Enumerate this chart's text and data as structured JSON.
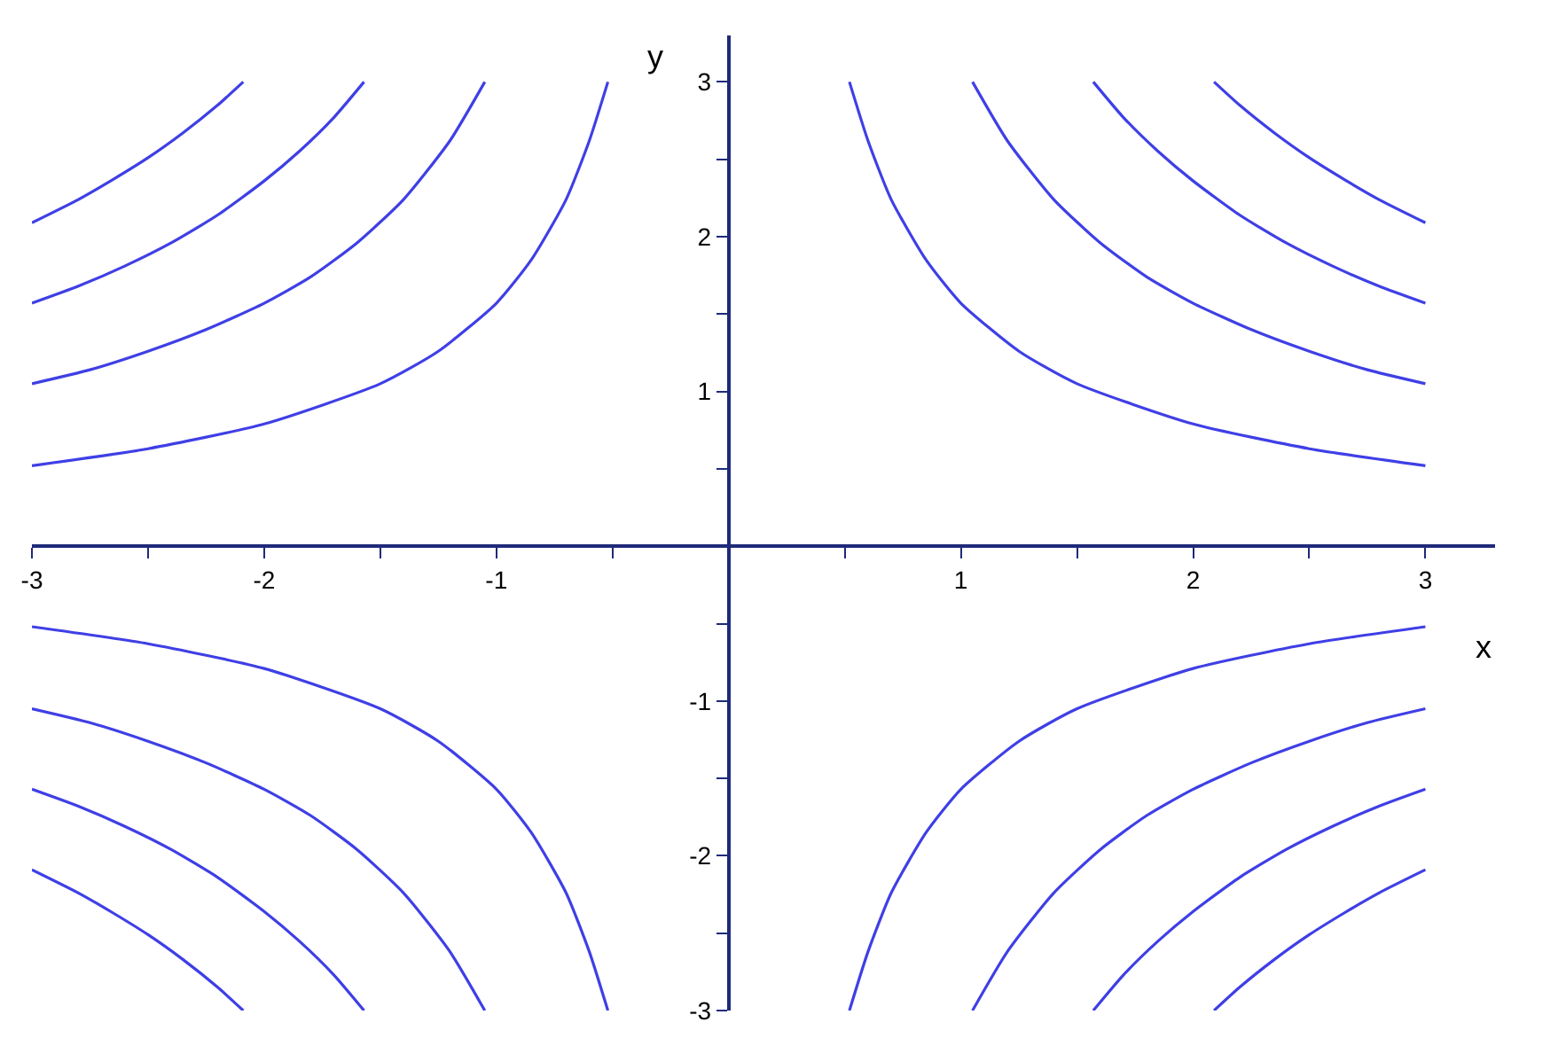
{
  "chart_data": {
    "type": "line",
    "xlabel": "x",
    "ylabel": "y",
    "xlim": [
      -3,
      3.3
    ],
    "ylim": [
      -3,
      3.3
    ],
    "xticks": [
      -3,
      {
        "value": -2.5,
        "label": null
      },
      -2,
      {
        "value": -1.5,
        "label": null
      },
      -1,
      {
        "value": -0.5,
        "label": null
      },
      {
        "value": 0,
        "label": null
      },
      {
        "value": 0.5,
        "label": null
      },
      1,
      {
        "value": 1.5,
        "label": null
      },
      2,
      {
        "value": 2.5,
        "label": null
      },
      3
    ],
    "yticks": [
      -3,
      {
        "value": -2.5,
        "label": null
      },
      -2,
      {
        "value": -1.5,
        "label": null
      },
      -1,
      {
        "value": -0.5,
        "label": null
      },
      {
        "value": 0,
        "label": null
      },
      {
        "value": 0.5,
        "label": null
      },
      1,
      {
        "value": 1.5,
        "label": null
      },
      2,
      {
        "value": 2.5,
        "label": null
      },
      3
    ],
    "marker": "none",
    "line_style": "solid",
    "series": [
      {
        "color": "#3f3fe6",
        "x": [
          0.52,
          0.6,
          0.7,
          0.85,
          1,
          1.25,
          1.5,
          2,
          2.5,
          3
        ],
        "values": [
          3.0,
          2.62,
          2.24,
          1.85,
          1.57,
          1.26,
          1.05,
          0.79,
          0.63,
          0.52
        ]
      },
      {
        "color": "#3f3fe6",
        "x": [
          1.05,
          1.2,
          1.4,
          1.6,
          1.8,
          2,
          2.25,
          2.5,
          2.75,
          3
        ],
        "values": [
          3.0,
          2.62,
          2.24,
          1.96,
          1.74,
          1.57,
          1.4,
          1.26,
          1.14,
          1.05
        ]
      },
      {
        "color": "#3f3fe6",
        "x": [
          1.57,
          1.7,
          1.85,
          2,
          2.2,
          2.4,
          2.6,
          2.8,
          3
        ],
        "values": [
          3.0,
          2.77,
          2.55,
          2.36,
          2.14,
          1.96,
          1.81,
          1.68,
          1.57
        ]
      },
      {
        "color": "#3f3fe6",
        "x": [
          2.09,
          2.2,
          2.35,
          2.5,
          2.65,
          2.8,
          3
        ],
        "values": [
          3.0,
          2.85,
          2.67,
          2.51,
          2.37,
          2.24,
          2.09
        ]
      },
      {
        "color": "#3f3fe6",
        "x": [
          -0.52,
          -0.6,
          -0.7,
          -0.85,
          -1,
          -1.25,
          -1.5,
          -2,
          -2.5,
          -3
        ],
        "values": [
          3.0,
          2.62,
          2.24,
          1.85,
          1.57,
          1.26,
          1.05,
          0.79,
          0.63,
          0.52
        ]
      },
      {
        "color": "#3f3fe6",
        "x": [
          -1.05,
          -1.2,
          -1.4,
          -1.6,
          -1.8,
          -2,
          -2.25,
          -2.5,
          -2.75,
          -3
        ],
        "values": [
          3.0,
          2.62,
          2.24,
          1.96,
          1.74,
          1.57,
          1.4,
          1.26,
          1.14,
          1.05
        ]
      },
      {
        "color": "#3f3fe6",
        "x": [
          -1.57,
          -1.7,
          -1.85,
          -2,
          -2.2,
          -2.4,
          -2.6,
          -2.8,
          -3
        ],
        "values": [
          3.0,
          2.77,
          2.55,
          2.36,
          2.14,
          1.96,
          1.81,
          1.68,
          1.57
        ]
      },
      {
        "color": "#3f3fe6",
        "x": [
          -2.09,
          -2.2,
          -2.35,
          -2.5,
          -2.65,
          -2.8,
          -3
        ],
        "values": [
          3.0,
          2.85,
          2.67,
          2.51,
          2.37,
          2.24,
          2.09
        ]
      },
      {
        "color": "#3f3fe6",
        "x": [
          -0.52,
          -0.6,
          -0.7,
          -0.85,
          -1,
          -1.25,
          -1.5,
          -2,
          -2.5,
          -3
        ],
        "values": [
          -3.0,
          -2.62,
          -2.24,
          -1.85,
          -1.57,
          -1.26,
          -1.05,
          -0.79,
          -0.63,
          -0.52
        ]
      },
      {
        "color": "#3f3fe6",
        "x": [
          -1.05,
          -1.2,
          -1.4,
          -1.6,
          -1.8,
          -2,
          -2.25,
          -2.5,
          -2.75,
          -3
        ],
        "values": [
          -3.0,
          -2.62,
          -2.24,
          -1.96,
          -1.74,
          -1.57,
          -1.4,
          -1.26,
          -1.14,
          -1.05
        ]
      },
      {
        "color": "#3f3fe6",
        "x": [
          -1.57,
          -1.7,
          -1.85,
          -2,
          -2.2,
          -2.4,
          -2.6,
          -2.8,
          -3
        ],
        "values": [
          -3.0,
          -2.77,
          -2.55,
          -2.36,
          -2.14,
          -1.96,
          -1.81,
          -1.68,
          -1.57
        ]
      },
      {
        "color": "#3f3fe6",
        "x": [
          -2.09,
          -2.2,
          -2.35,
          -2.5,
          -2.65,
          -2.8,
          -3
        ],
        "values": [
          -3.0,
          -2.85,
          -2.67,
          -2.51,
          -2.37,
          -2.24,
          -2.09
        ]
      },
      {
        "color": "#3f3fe6",
        "x": [
          0.52,
          0.6,
          0.7,
          0.85,
          1,
          1.25,
          1.5,
          2,
          2.5,
          3
        ],
        "values": [
          -3.0,
          -2.62,
          -2.24,
          -1.85,
          -1.57,
          -1.26,
          -1.05,
          -0.79,
          -0.63,
          -0.52
        ]
      },
      {
        "color": "#3f3fe6",
        "x": [
          1.05,
          1.2,
          1.4,
          1.6,
          1.8,
          2,
          2.25,
          2.5,
          2.75,
          3
        ],
        "values": [
          -3.0,
          -2.62,
          -2.24,
          -1.96,
          -1.74,
          -1.57,
          -1.4,
          -1.26,
          -1.14,
          -1.05
        ]
      },
      {
        "color": "#3f3fe6",
        "x": [
          1.57,
          1.7,
          1.85,
          2,
          2.2,
          2.4,
          2.6,
          2.8,
          3
        ],
        "values": [
          -3.0,
          -2.77,
          -2.55,
          -2.36,
          -2.14,
          -1.96,
          -1.81,
          -1.68,
          -1.57
        ]
      },
      {
        "color": "#3f3fe6",
        "x": [
          2.09,
          2.2,
          2.35,
          2.5,
          2.65,
          2.8,
          3
        ],
        "values": [
          -3.0,
          -2.85,
          -2.67,
          -2.51,
          -2.37,
          -2.24,
          -2.09
        ]
      }
    ]
  }
}
